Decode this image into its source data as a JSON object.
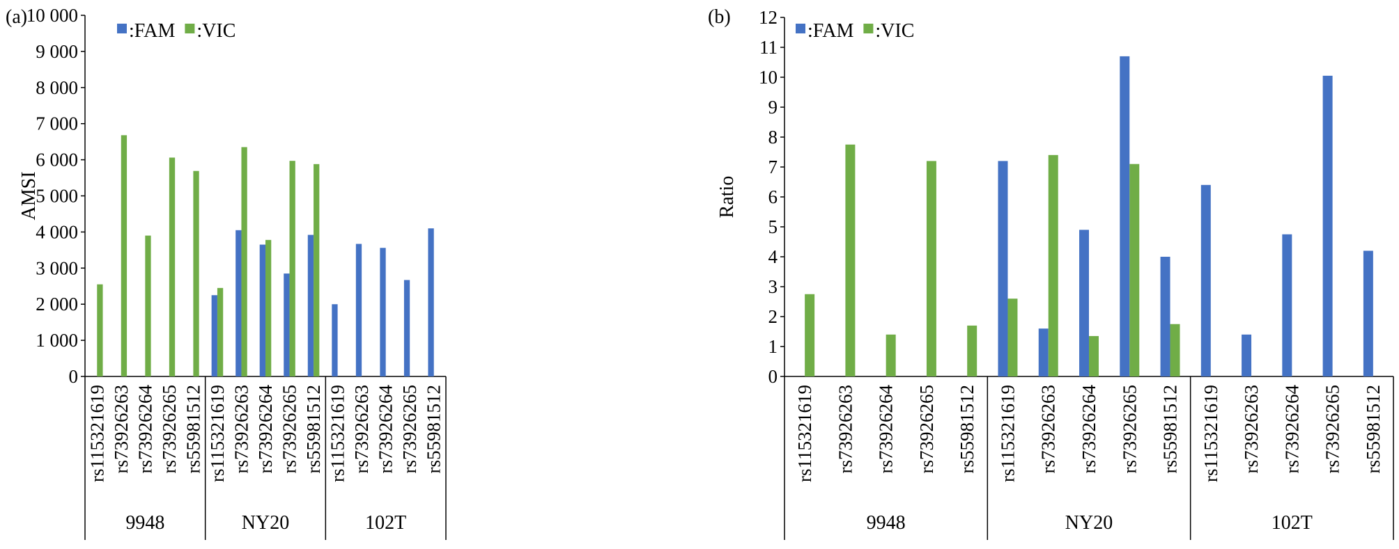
{
  "figure": {
    "colors": {
      "FAM": "#4472C4",
      "VIC": "#70AD47"
    },
    "legend": [
      "FAM",
      "VIC"
    ],
    "legend_prefix": ":"
  },
  "chart_data": [
    {
      "type": "bar",
      "panel_label": "(a)",
      "ylabel": "AMSI",
      "xlabel": "",
      "ylim": [
        0,
        10000
      ],
      "yticks": [
        0,
        1000,
        2000,
        3000,
        4000,
        5000,
        6000,
        7000,
        8000,
        9000,
        10000
      ],
      "ytick_labels": [
        "0",
        "1 000",
        "2 000",
        "3 000",
        "4 000",
        "5 000",
        "6 000",
        "7 000",
        "8 000",
        "9 000",
        "10 000"
      ],
      "legend_position": "top-left",
      "grid": false,
      "categories": [
        "rs115321619",
        "rs73926263",
        "rs73926264",
        "rs73926265",
        "rs55981512",
        "rs115321619",
        "rs73926263",
        "rs73926264",
        "rs73926265",
        "rs55981512",
        "rs115321619",
        "rs73926263",
        "rs73926264",
        "rs73926265",
        "rs55981512"
      ],
      "groups": [
        {
          "label": "9948",
          "size": 5
        },
        {
          "label": "NY20",
          "size": 5
        },
        {
          "label": "102T",
          "size": 5
        }
      ],
      "series": [
        {
          "name": "FAM",
          "values": [
            0,
            0,
            0,
            0,
            0,
            2250,
            4050,
            3650,
            2850,
            3920,
            2000,
            3670,
            3560,
            2670,
            4100
          ]
        },
        {
          "name": "VIC",
          "values": [
            2550,
            6680,
            3900,
            6060,
            5690,
            2450,
            6350,
            3780,
            5970,
            5880,
            0,
            0,
            0,
            0,
            0
          ]
        }
      ]
    },
    {
      "type": "bar",
      "panel_label": "(b)",
      "ylabel": "Ratio",
      "xlabel": "",
      "ylim": [
        0,
        12
      ],
      "yticks": [
        0,
        1,
        2,
        3,
        4,
        5,
        6,
        7,
        8,
        9,
        10,
        11,
        12
      ],
      "ytick_labels": [
        "0",
        "1",
        "2",
        "3",
        "4",
        "5",
        "6",
        "7",
        "8",
        "9",
        "10",
        "11",
        "12"
      ],
      "legend_position": "top-left",
      "grid": false,
      "categories": [
        "rs115321619",
        "rs73926263",
        "rs73926264",
        "rs73926265",
        "rs55981512",
        "rs115321619",
        "rs73926263",
        "rs73926264",
        "rs73926265",
        "rs55981512",
        "rs115321619",
        "rs73926263",
        "rs73926264",
        "rs73926265",
        "rs55981512"
      ],
      "groups": [
        {
          "label": "9948",
          "size": 5
        },
        {
          "label": "NY20",
          "size": 5
        },
        {
          "label": "102T",
          "size": 5
        }
      ],
      "series": [
        {
          "name": "FAM",
          "values": [
            0,
            0,
            0,
            0,
            0,
            7.2,
            1.6,
            4.9,
            10.7,
            4.0,
            6.4,
            1.4,
            4.75,
            10.05,
            4.2
          ]
        },
        {
          "name": "VIC",
          "values": [
            2.75,
            7.75,
            1.4,
            7.2,
            1.7,
            2.6,
            7.4,
            1.35,
            7.1,
            1.75,
            0,
            0,
            0,
            0,
            0
          ]
        }
      ]
    }
  ]
}
